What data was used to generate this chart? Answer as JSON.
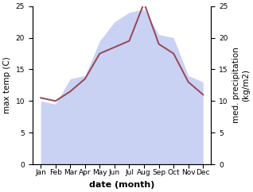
{
  "months": [
    "Jan",
    "Feb",
    "Mar",
    "Apr",
    "May",
    "Jun",
    "Jul",
    "Aug",
    "Sep",
    "Oct",
    "Nov",
    "Dec"
  ],
  "temp_line": [
    10.5,
    10.0,
    11.5,
    13.5,
    17.5,
    18.5,
    19.5,
    25.5,
    19.0,
    17.5,
    13.0,
    11.0
  ],
  "precip_fill": [
    10.0,
    9.5,
    13.5,
    14.0,
    19.5,
    22.5,
    24.0,
    24.5,
    20.5,
    20.0,
    14.0,
    13.0
  ],
  "temp_color": "#994455",
  "fill_color": "#b8c4f0",
  "fill_alpha": 0.75,
  "ylim": [
    0,
    25
  ],
  "yticks": [
    0,
    5,
    10,
    15,
    20,
    25
  ],
  "ylabel_left": "max temp (C)",
  "ylabel_right": "med. precipitation\n(kg/m2)",
  "xlabel": "date (month)",
  "bg_color": "#ffffff",
  "tick_fontsize": 6.5,
  "label_fontsize": 7.5,
  "xlabel_fontsize": 8,
  "line_width": 1.4
}
